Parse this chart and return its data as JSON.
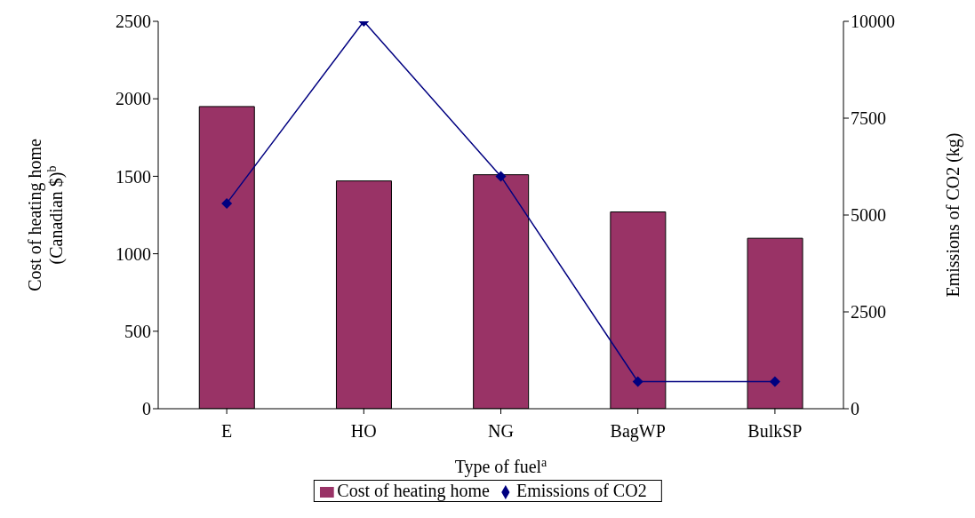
{
  "chart_data": {
    "type": "bar",
    "categories": [
      "E",
      "HO",
      "NG",
      "BagWP",
      "BulkSP"
    ],
    "xlabel": "Type of fuel$^{a}$",
    "ylabel": "Cost of heating home\n(Canadian $)$^{b}$",
    "y2label": "Emissions of CO2 (kg)",
    "series": [
      {
        "name": "Cost of heating home",
        "color": "#993366",
        "values": [
          1950,
          1470,
          1510,
          1270,
          1100
        ]
      },
      {
        "name": "Emissions of CO2",
        "type": "line",
        "axis": "y2",
        "color": "#000080",
        "marker": "diamond",
        "values": [
          5300,
          10000,
          6000,
          700,
          700
        ]
      }
    ],
    "ylim": [
      0,
      2500
    ],
    "yticks": [
      0,
      500,
      1000,
      1500,
      2000,
      2500
    ],
    "y2lim": [
      0,
      10000
    ],
    "y2ticks": [
      0,
      2500,
      5000,
      7500,
      10000
    ],
    "grid": false,
    "legend": "bottom"
  }
}
